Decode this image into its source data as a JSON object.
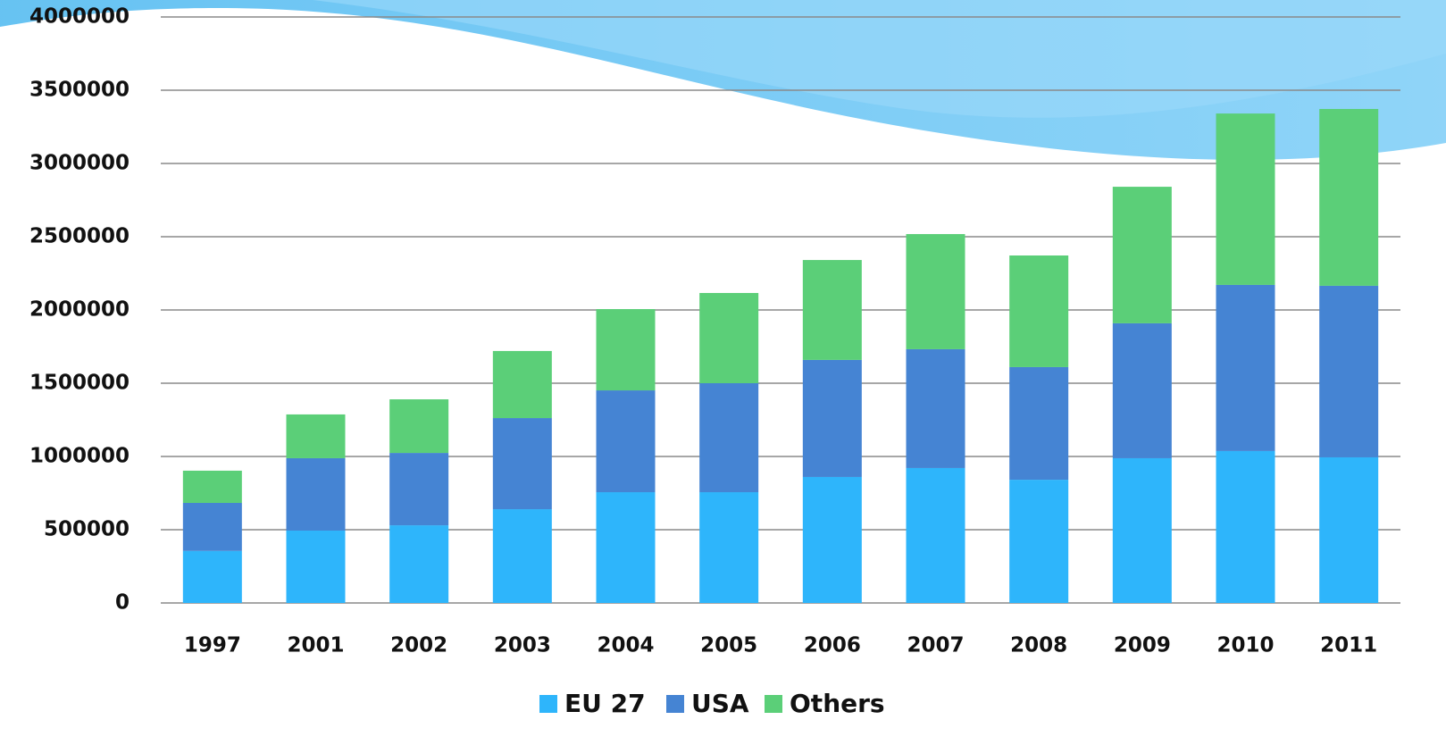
{
  "chart_data": {
    "type": "stacked-bar",
    "categories": [
      "1997",
      "2001",
      "2002",
      "2003",
      "2004",
      "2005",
      "2006",
      "2007",
      "2008",
      "2009",
      "2010",
      "2011"
    ],
    "series": [
      {
        "name": "EU 27",
        "color": "#2eb5fb",
        "values": [
          355000,
          494000,
          530000,
          640000,
          756000,
          756000,
          860000,
          921000,
          841000,
          988000,
          1037000,
          994000
        ]
      },
      {
        "name": "USA",
        "color": "#4584d3",
        "values": [
          328000,
          494000,
          494000,
          622000,
          695000,
          744000,
          799000,
          811000,
          769000,
          921000,
          1134000,
          1171000
        ]
      },
      {
        "name": "Others",
        "color": "#5bcf78",
        "values": [
          220000,
          299000,
          366000,
          458000,
          555000,
          616000,
          682000,
          786000,
          762000,
          932000,
          1170000,
          1207000
        ]
      }
    ],
    "ylim": [
      0,
      4000000
    ],
    "yticks": [
      0,
      500000,
      1000000,
      1500000,
      2000000,
      2500000,
      3000000,
      3500000,
      4000000
    ],
    "grid": true,
    "legend": "bottom"
  }
}
